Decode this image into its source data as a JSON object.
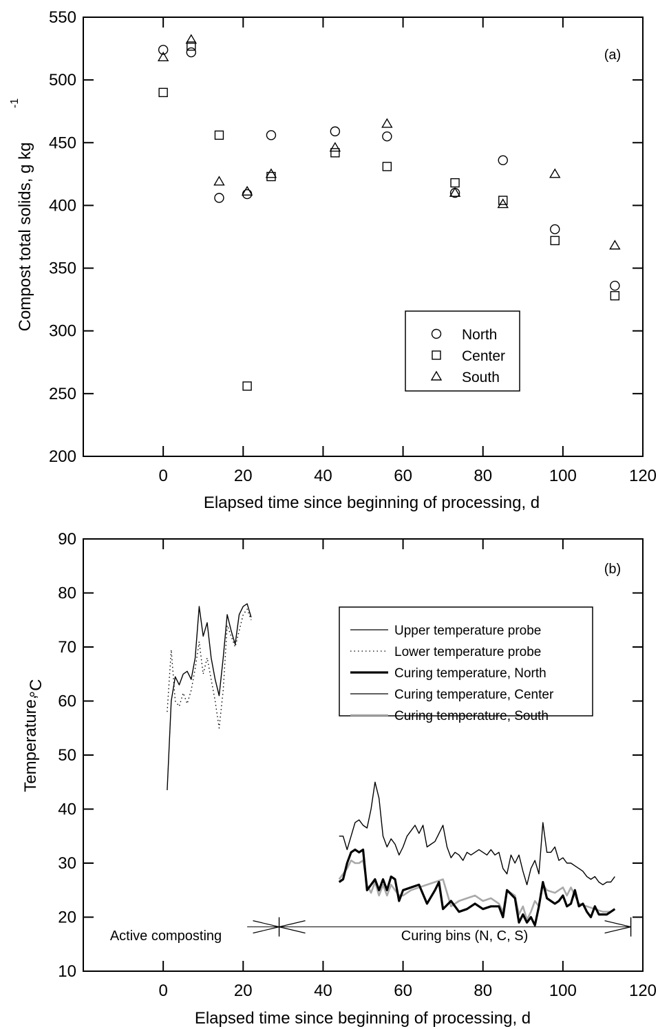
{
  "chart_data": [
    {
      "type": "scatter",
      "panel_label": "(a)",
      "xlabel": "Elapsed time since beginning of processing, d",
      "ylabel": "Compost total solids, g kg",
      "ylabel_superscript": "-1",
      "xlim": [
        -20,
        120
      ],
      "ylim": [
        200,
        550
      ],
      "xticks": [
        0,
        20,
        40,
        60,
        80,
        100,
        120
      ],
      "yticks": [
        200,
        250,
        300,
        350,
        400,
        450,
        500,
        550
      ],
      "xtick_labels": [
        "0",
        "20",
        "40",
        "60",
        "80",
        "100",
        "120"
      ],
      "ytick_labels": [
        "200",
        "250",
        "300",
        "350",
        "400",
        "450",
        "500",
        "550"
      ],
      "legend_position": "lower-right",
      "series": [
        {
          "name": "North",
          "marker": "circle",
          "x": [
            0,
            7,
            14,
            21,
            27,
            43,
            56,
            73,
            85,
            98,
            113
          ],
          "y": [
            524,
            522,
            406,
            409,
            456,
            459,
            455,
            410,
            436,
            381,
            336
          ]
        },
        {
          "name": "Center",
          "marker": "square",
          "x": [
            0,
            7,
            14,
            21,
            27,
            43,
            56,
            73,
            85,
            98,
            113
          ],
          "y": [
            490,
            527,
            456,
            256,
            423,
            442,
            431,
            418,
            404,
            372,
            328
          ]
        },
        {
          "name": "South",
          "marker": "triangle",
          "x": [
            0,
            7,
            14,
            21,
            27,
            43,
            56,
            73,
            85,
            98,
            113
          ],
          "y": [
            518,
            532,
            419,
            411,
            425,
            446,
            465,
            410,
            401,
            425,
            368
          ]
        }
      ]
    },
    {
      "type": "line",
      "panel_label": "(b)",
      "xlabel": "Elapsed time since beginning of processing, d",
      "ylabel": "Temperature,",
      "ylabel_unit": "°C",
      "xlim": [
        -20,
        120
      ],
      "ylim": [
        10,
        90
      ],
      "xticks": [
        0,
        20,
        40,
        60,
        80,
        100,
        120
      ],
      "yticks": [
        10,
        20,
        30,
        40,
        50,
        60,
        70,
        80,
        90
      ],
      "xtick_labels": [
        "0",
        "20",
        "40",
        "60",
        "80",
        "100",
        "120"
      ],
      "ytick_labels": [
        "10",
        "20",
        "30",
        "40",
        "50",
        "60",
        "70",
        "80",
        "90"
      ],
      "legend_position": "top-right",
      "annotations": {
        "active": "Active composting",
        "curing": "Curing bins (N, C, S)",
        "divider_x": 29,
        "active_arrow_from": 21,
        "curing_arrow_to": 117,
        "arrow_y": 18.2
      },
      "series": [
        {
          "name": "Upper temperature probe",
          "style": "solid-thin",
          "x": [
            1,
            2,
            3,
            4,
            5,
            6,
            7,
            8,
            9,
            10,
            11,
            12,
            13,
            14,
            15,
            16,
            17,
            18,
            19,
            20,
            21,
            22
          ],
          "y": [
            43.5,
            60,
            64.5,
            63,
            65,
            65.5,
            64,
            68,
            77.5,
            72,
            74.5,
            68,
            64,
            61,
            68,
            76,
            73,
            70.5,
            76,
            77.5,
            78,
            75.5
          ]
        },
        {
          "name": "Lower temperature probe",
          "style": "dotted",
          "x": [
            1,
            2,
            3,
            4,
            5,
            6,
            7,
            8,
            9,
            10,
            11,
            12,
            13,
            14,
            15,
            16,
            17,
            18,
            19,
            20,
            21,
            22
          ],
          "y": [
            58,
            69.5,
            60,
            59,
            61.5,
            59.5,
            62,
            66,
            71,
            65,
            68,
            64,
            60,
            55,
            62,
            74,
            72,
            70,
            73,
            76,
            77,
            75
          ]
        },
        {
          "name": "Curing temperature, North",
          "style": "solid-thick",
          "x": [
            44,
            45,
            46,
            47,
            48,
            49,
            50,
            51,
            52,
            53,
            54,
            55,
            56,
            57,
            58,
            59,
            60,
            62,
            64,
            66,
            68,
            69,
            70,
            72,
            74,
            76,
            78,
            80,
            82,
            84,
            85,
            86,
            88,
            89,
            90,
            91,
            92,
            93,
            94,
            95,
            96,
            97,
            98,
            99,
            100,
            101,
            102,
            103,
            104,
            105,
            106,
            107,
            108,
            109,
            110,
            111,
            112,
            113
          ],
          "y": [
            26.5,
            27,
            30,
            32,
            32.5,
            32,
            32.5,
            25,
            26,
            27,
            25,
            27,
            25,
            27.5,
            27,
            23,
            25,
            25.5,
            26,
            22.5,
            25,
            26.5,
            21.5,
            23,
            21,
            21.5,
            22.5,
            21.5,
            22,
            22,
            20,
            25,
            23.5,
            19,
            20.5,
            19,
            20,
            18.5,
            22,
            26.5,
            23.5,
            23,
            22.5,
            23,
            24,
            22,
            22.5,
            25,
            22,
            22.5,
            21,
            20,
            22,
            20.5,
            20.5,
            20.5,
            21,
            21.5
          ]
        },
        {
          "name": "Curing temperature, Center",
          "style": "solid-thin",
          "x": [
            44,
            45,
            46,
            47,
            48,
            49,
            50,
            51,
            52,
            53,
            54,
            55,
            56,
            57,
            58,
            59,
            60,
            61,
            62,
            63,
            64,
            65,
            66,
            67,
            68,
            69,
            70,
            71,
            72,
            73,
            74,
            75,
            76,
            77,
            78,
            79,
            80,
            81,
            82,
            83,
            84,
            85,
            86,
            87,
            88,
            89,
            90,
            91,
            92,
            93,
            94,
            95,
            96,
            97,
            98,
            99,
            100,
            101,
            102,
            103,
            104,
            105,
            106,
            107,
            108,
            109,
            110,
            111,
            112,
            113
          ],
          "y": [
            35,
            35,
            32.5,
            35,
            37.5,
            38,
            37,
            36.5,
            40,
            45,
            42,
            35,
            33,
            34.5,
            33.5,
            31.5,
            33,
            35,
            36,
            37,
            35.5,
            37,
            33,
            33.5,
            34,
            35.5,
            37,
            33,
            31,
            32,
            31.5,
            30.5,
            32,
            31.5,
            32,
            32.5,
            32,
            31.5,
            32.5,
            31.5,
            32,
            29,
            28,
            31.5,
            30,
            31.5,
            28.5,
            26,
            29,
            30.5,
            28,
            37.5,
            32,
            32,
            33,
            30.5,
            31,
            30,
            30,
            29.5,
            29,
            28.5,
            27.5,
            27,
            27.5,
            26.5,
            26,
            26.5,
            26.5,
            27.5
          ]
        },
        {
          "name": "Curing temperature, South",
          "style": "solid-gray",
          "x": [
            44,
            45,
            46,
            47,
            48,
            49,
            50,
            51,
            52,
            53,
            54,
            55,
            56,
            57,
            58,
            59,
            60,
            62,
            64,
            66,
            68,
            70,
            72,
            74,
            76,
            78,
            80,
            82,
            84,
            85,
            86,
            88,
            89,
            90,
            91,
            92,
            93,
            94,
            95,
            96,
            98,
            100,
            101,
            102,
            104,
            106,
            108,
            110,
            112,
            113
          ],
          "y": [
            27,
            28,
            29,
            30.5,
            30,
            30,
            30.5,
            26,
            24.5,
            26.5,
            24,
            26,
            24,
            26,
            25,
            24,
            24,
            25,
            25.5,
            26,
            26.5,
            27,
            22,
            23,
            23.5,
            24,
            23,
            23.5,
            22.5,
            21,
            25,
            24,
            20.5,
            22,
            19.5,
            21,
            23,
            22,
            26,
            25,
            24.5,
            25.5,
            24,
            25.5,
            22.5,
            22,
            21.5,
            21,
            21,
            21.5
          ]
        }
      ]
    }
  ]
}
